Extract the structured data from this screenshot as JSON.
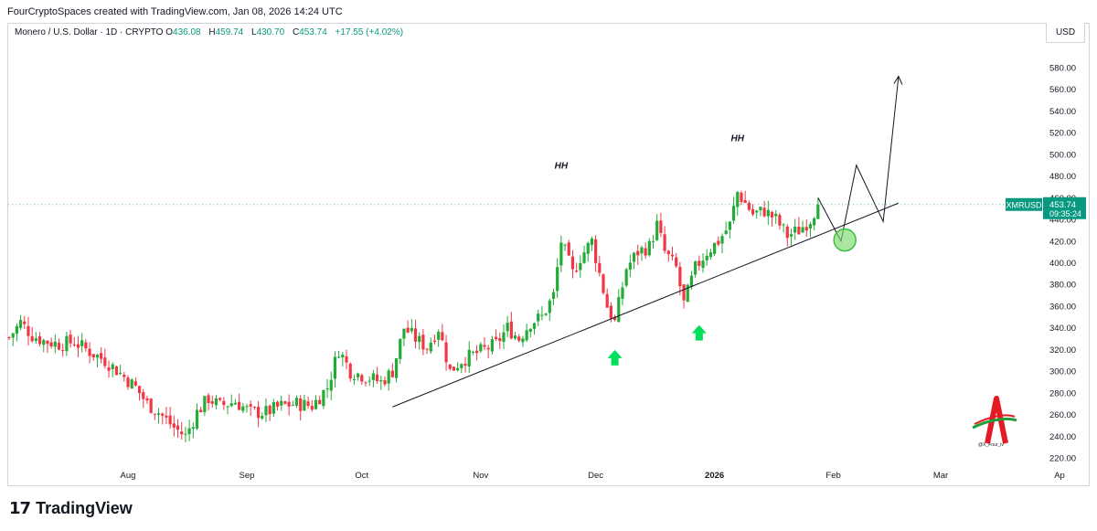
{
  "header": {
    "text": "FourCryptoSpaces created with TradingView.com, Jan 08, 2026 14:24 UTC"
  },
  "legend": {
    "symbol": "Monero / U.S. Dollar · 1D · CRYPTO",
    "o_label": "O",
    "o_value": "436.08",
    "h_label": "H",
    "h_value": "459.74",
    "l_label": "L",
    "l_value": "430.70",
    "c_label": "C",
    "c_value": "453.74",
    "change": "+17.55 (+4.02%)"
  },
  "currency_button": "USD",
  "price_tag": {
    "ticker": "XMRUSD",
    "price": "453.74",
    "countdown": "09:35:24"
  },
  "footer": {
    "brand": "TradingView"
  },
  "watermark": {
    "handle": "@X_Four_iv"
  },
  "colors": {
    "up": "#089981",
    "down": "#f23645",
    "up_candle": "#22ab37",
    "down_candle": "#f23645",
    "arrow": "#00e05a",
    "circle": "#7bd96b"
  },
  "chart_data": {
    "type": "candlestick",
    "title": "Monero / U.S. Dollar · 1D · CRYPTO",
    "ylim": [
      215,
      590
    ],
    "y_ticks": [
      220,
      240,
      260,
      280,
      300,
      320,
      340,
      360,
      380,
      400,
      420,
      440,
      460,
      480,
      500,
      520,
      540,
      560,
      580
    ],
    "y_tick_labels": [
      "220.00",
      "240.00",
      "260.00",
      "280.00",
      "300.00",
      "320.00",
      "340.00",
      "360.00",
      "380.00",
      "400.00",
      "420.00",
      "440.00",
      "460.00",
      "480.00",
      "500.00",
      "520.00",
      "540.00",
      "560.00",
      "580.00"
    ],
    "x_start": "2025-07-01",
    "x_ticks": [
      {
        "date": "2025-08-01",
        "label": "Aug",
        "bold": false
      },
      {
        "date": "2025-09-01",
        "label": "Sep",
        "bold": false
      },
      {
        "date": "2025-10-01",
        "label": "Oct",
        "bold": false
      },
      {
        "date": "2025-11-01",
        "label": "Nov",
        "bold": false
      },
      {
        "date": "2025-12-01",
        "label": "Dec",
        "bold": false
      },
      {
        "date": "2026-01-01",
        "label": "2026",
        "bold": true
      },
      {
        "date": "2026-02-01",
        "label": "Feb",
        "bold": false
      },
      {
        "date": "2026-03-01",
        "label": "Mar",
        "bold": false
      },
      {
        "date": "2026-04-01",
        "label": "Ap",
        "bold": false
      }
    ],
    "close_path": [
      [
        "2025-07-01",
        331
      ],
      [
        "2025-07-04",
        345
      ],
      [
        "2025-07-07",
        333
      ],
      [
        "2025-07-10",
        328
      ],
      [
        "2025-07-14",
        325
      ],
      [
        "2025-07-18",
        327
      ],
      [
        "2025-07-22",
        318
      ],
      [
        "2025-07-26",
        310
      ],
      [
        "2025-07-30",
        298
      ],
      [
        "2025-08-03",
        285
      ],
      [
        "2025-08-06",
        270
      ],
      [
        "2025-08-09",
        262
      ],
      [
        "2025-08-13",
        248
      ],
      [
        "2025-08-16",
        240
      ],
      [
        "2025-08-19",
        262
      ],
      [
        "2025-08-22",
        275
      ],
      [
        "2025-08-25",
        268
      ],
      [
        "2025-08-29",
        272
      ],
      [
        "2025-09-02",
        262
      ],
      [
        "2025-09-06",
        262
      ],
      [
        "2025-09-10",
        268
      ],
      [
        "2025-09-14",
        270
      ],
      [
        "2025-09-18",
        268
      ],
      [
        "2025-09-22",
        285
      ],
      [
        "2025-09-25",
        320
      ],
      [
        "2025-09-28",
        300
      ],
      [
        "2025-10-02",
        295
      ],
      [
        "2025-10-06",
        290
      ],
      [
        "2025-10-09",
        300
      ],
      [
        "2025-10-12",
        340
      ],
      [
        "2025-10-15",
        330
      ],
      [
        "2025-10-18",
        322
      ],
      [
        "2025-10-21",
        340
      ],
      [
        "2025-10-24",
        300
      ],
      [
        "2025-10-27",
        310
      ],
      [
        "2025-10-30",
        315
      ],
      [
        "2025-11-02",
        320
      ],
      [
        "2025-11-05",
        325
      ],
      [
        "2025-11-08",
        340
      ],
      [
        "2025-11-11",
        330
      ],
      [
        "2025-11-14",
        345
      ],
      [
        "2025-11-17",
        350
      ],
      [
        "2025-11-20",
        370
      ],
      [
        "2025-11-22",
        420
      ],
      [
        "2025-11-25",
        390
      ],
      [
        "2025-11-27",
        405
      ],
      [
        "2025-11-30",
        420
      ],
      [
        "2025-12-02",
        390
      ],
      [
        "2025-12-04",
        360
      ],
      [
        "2025-12-06",
        345
      ],
      [
        "2025-12-09",
        395
      ],
      [
        "2025-12-12",
        410
      ],
      [
        "2025-12-15",
        415
      ],
      [
        "2025-12-17",
        435
      ],
      [
        "2025-12-19",
        410
      ],
      [
        "2025-12-22",
        395
      ],
      [
        "2025-12-24",
        362
      ],
      [
        "2025-12-27",
        395
      ],
      [
        "2025-12-30",
        410
      ],
      [
        "2026-01-02",
        420
      ],
      [
        "2026-01-05",
        435
      ],
      [
        "2026-01-07",
        465
      ],
      [
        "2026-01-09",
        455
      ],
      [
        "2026-01-11",
        445
      ],
      [
        "2026-01-14",
        448
      ],
      [
        "2026-01-17",
        440
      ],
      [
        "2026-01-20",
        425
      ],
      [
        "2026-01-23",
        430
      ],
      [
        "2026-01-26",
        440
      ],
      [
        "2026-01-28",
        454
      ]
    ],
    "trendline": [
      [
        "2025-10-09",
        267
      ],
      [
        "2026-02-18",
        455
      ]
    ],
    "projection": [
      [
        "2026-01-28",
        460
      ],
      [
        "2026-02-03",
        420
      ],
      [
        "2026-02-07",
        490
      ],
      [
        "2026-02-14",
        438
      ],
      [
        "2026-02-18",
        572
      ]
    ],
    "annotations": [
      {
        "text": "HH",
        "date": "2025-11-22",
        "price": 487
      },
      {
        "text": "HH",
        "date": "2026-01-07",
        "price": 512
      }
    ],
    "arrows": [
      {
        "date": "2025-12-06",
        "price": 312
      },
      {
        "date": "2025-12-28",
        "price": 335
      }
    ],
    "circle": {
      "date": "2026-02-04",
      "price": 421
    },
    "last_price": 453.74
  }
}
